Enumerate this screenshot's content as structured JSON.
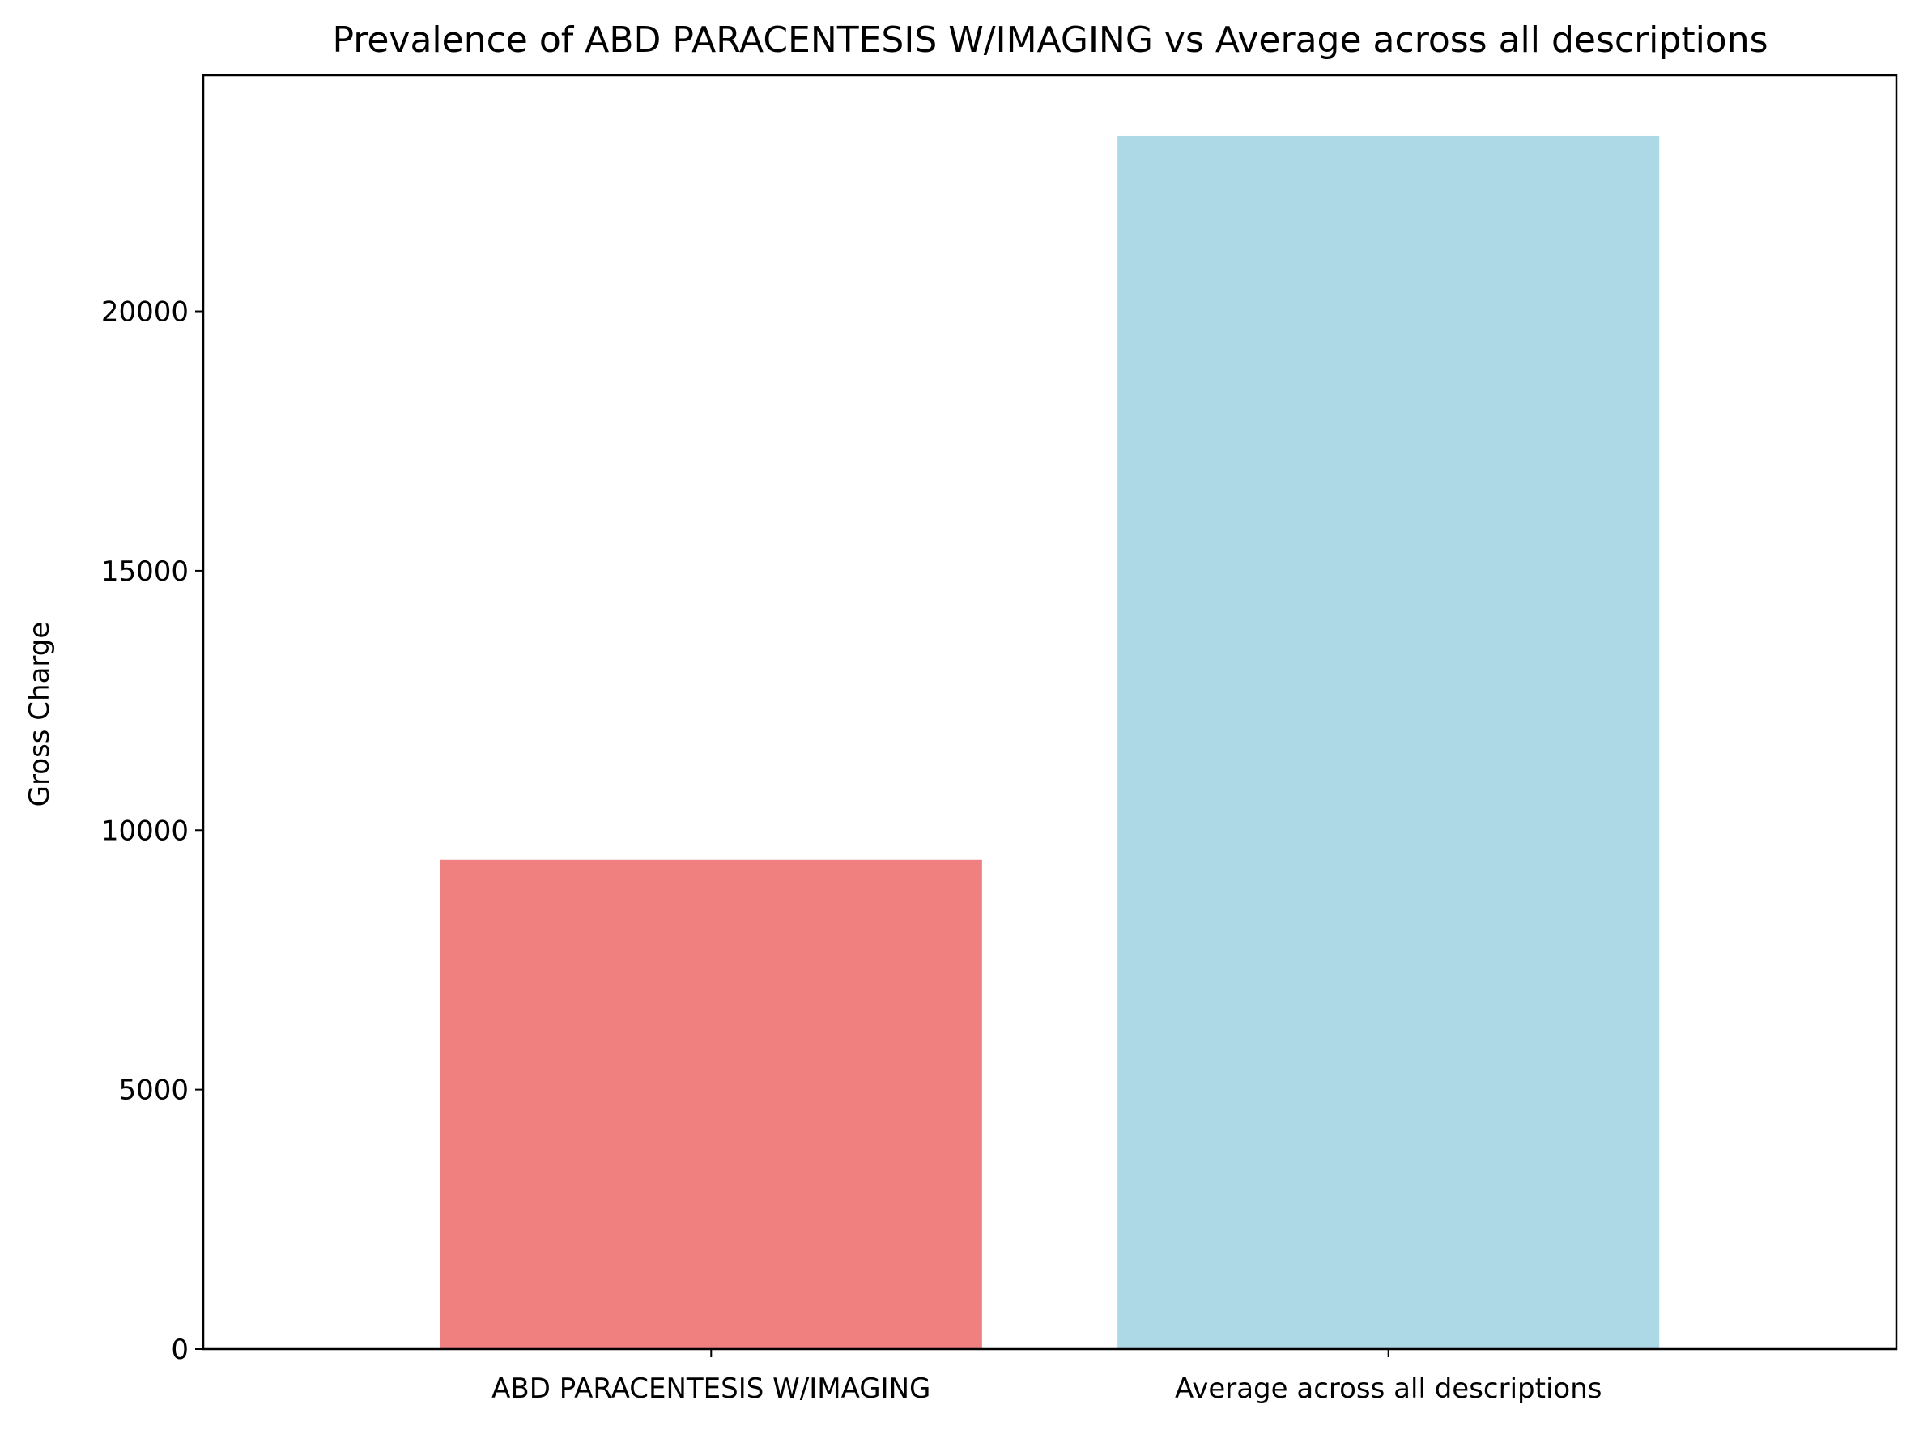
{
  "chart_data": {
    "type": "bar",
    "title": "Prevalence of ABD PARACENTESIS W/IMAGING vs Average across all descriptions",
    "xlabel": "",
    "ylabel": "Gross Charge",
    "categories": [
      "ABD PARACENTESIS W/IMAGING",
      "Average across all descriptions"
    ],
    "values": [
      9430,
      23380
    ],
    "colors": [
      "#f08080",
      "#add8e6"
    ],
    "ylim": [
      0,
      24550
    ],
    "yticks": [
      0,
      5000,
      10000,
      15000,
      20000
    ],
    "ytick_labels": [
      "0",
      "5000",
      "10000",
      "15000",
      "20000"
    ],
    "grid": false,
    "legend": "none"
  }
}
